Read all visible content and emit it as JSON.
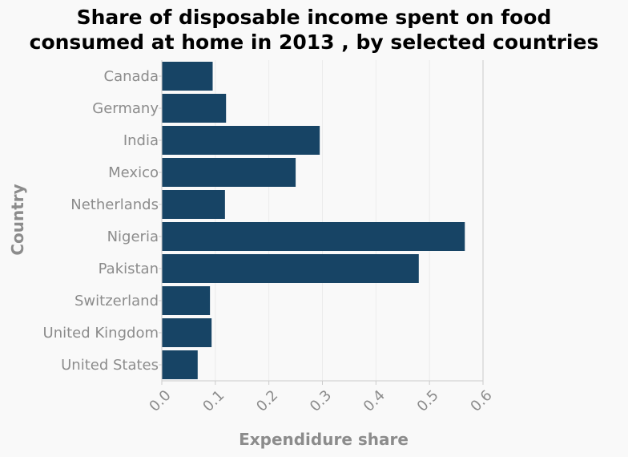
{
  "chart_data": {
    "type": "bar",
    "orientation": "horizontal",
    "title_lines": [
      "Share of disposable income spent on food",
      "consumed at home in 2013 , by selected countries"
    ],
    "xlabel": "Expendidure share",
    "ylabel": "Country",
    "categories": [
      "Canada",
      "Germany",
      "India",
      "Mexico",
      "Netherlands",
      "Nigeria",
      "Pakistan",
      "Switzerland",
      "United Kingdom",
      "United States"
    ],
    "values": [
      0.095,
      0.12,
      0.295,
      0.25,
      0.118,
      0.566,
      0.48,
      0.09,
      0.093,
      0.067
    ],
    "xlim": [
      0,
      0.6
    ],
    "xticks": [
      "0.0",
      "0.1",
      "0.2",
      "0.3",
      "0.4",
      "0.5",
      "0.6"
    ],
    "grid": true,
    "colors": {
      "bar": "#174465",
      "background": "#f9f9f9",
      "plot_background": "#f9f9f9",
      "grid": "#ececec",
      "axis": "#cccccc"
    }
  }
}
